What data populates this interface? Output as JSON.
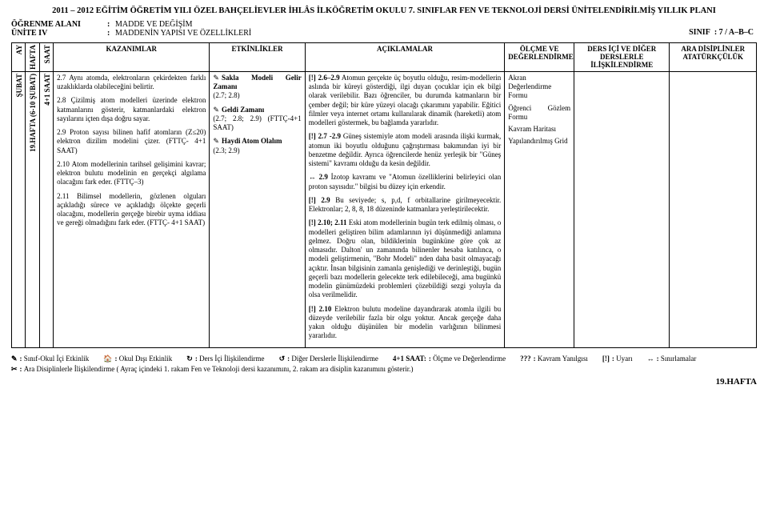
{
  "header_title": "2011 – 2012 EĞİTİM ÖĞRETİM YILI ÖZEL BAHÇELİEVLER İHLÂS İLKÖĞRETİM OKULU 7. SINIFLAR FEN VE TEKNOLOJİ DERSİ ÜNİTELENDİRİLMİŞ YILLIK PLANI",
  "ogrenme_alani_lab": "ÖĞRENME ALANI",
  "ogrenme_alani_val": "MADDE VE DEĞİŞİM",
  "unite_lab": "ÜNİTE IV",
  "unite_val": "MADDENİN YAPISI VE ÖZELLİKLERİ",
  "sinif_lab": "SINIF",
  "sinif_val": "7 / A–B–C",
  "cols": {
    "ay": "AY",
    "hafta": "HAFTA",
    "saat": "SAAT",
    "kazanimlar": "KAZANIMLAR",
    "etkinlikler": "ETKİNLİKLER",
    "aciklamalar": "AÇIKLAMALAR",
    "olcme": "ÖLÇME VE DEĞERLENDİRME",
    "ders_ici": "DERS İÇİ VE DİĞER DERSLERLE İLİŞKİLENDİRME",
    "ara": "ARA DİSİPLİNLER ATATÜRKÇÜLÜK"
  },
  "row": {
    "ay": "ŞUBAT",
    "hafta": "19.HAFTA (6-10 ŞUBAT)",
    "saat": "4+1 SAAT",
    "kazanimlar": [
      {
        "n": "2.7",
        "t": "Aynı atomda, elektronların çekirdekten farklı uzaklıklarda olabileceğini belirtir."
      },
      {
        "n": "2.8",
        "t": "Çizilmiş atom modelleri üzerinde elektron katmanlarını gösterir, katmanlardaki elektron sayılarını içten dışa doğru sayar."
      },
      {
        "n": "2.9",
        "t": "Proton sayısı bilinen hafif atomların (Z≤20) elektron dizilim modelini çizer. (FTTÇ- 4+1 SAAT)"
      },
      {
        "n": "2.10",
        "t": "Atom modellerinin tarihsel gelişimini kavrar; elektron bulutu modelinin en gerçekçi algılama olacağını fark eder. (FTTÇ–3)"
      },
      {
        "n": "2.11",
        "t": "Bilimsel modellerin, gözlenen olguları açıkladığı sürece ve açıkladığı ölçekte geçerli olacağını, modellerin gerçeğe birebir uyma iddiası ve gereği olmadığını fark eder. (FTTÇ- 4+1 SAAT)"
      }
    ],
    "etkinlikler": [
      {
        "icon": "✎",
        "title": "Sakla Modeli Gelir Zamanı",
        "sub": "(2.7; 2.8)"
      },
      {
        "icon": "✎",
        "title": "Geldi Zamanı",
        "sub": "(2.7; 2.8; 2.9) (FTTÇ-4+1 SAAT)"
      },
      {
        "icon": "✎",
        "title": "Haydi Atom Olalım",
        "sub": "(2.3; 2.9)"
      }
    ],
    "aciklamalar": [
      {
        "prefix": "[!]",
        "bold": "2.6–2.9",
        "t": "Atomun gerçekte üç boyutlu olduğu, resim-modellerin aslında bir küreyi gösterdiği, ilgi duyan çocuklar için ek bilgi olarak verilebilir. Bazı öğrenciler, bu durumda katmanların bir çember değil; bir küre yüzeyi olacağı çıkarımını yapabilir. Eğitici filmler veya internet ortamı kullanılarak dinamik (hareketli) atom modelleri göstermek, bu bağlamda yararlıdır."
      },
      {
        "prefix": "[!]",
        "bold": "2.7 -2.9",
        "t": "Güneş sistemiyle atom modeli arasında ilişki kurmak, atomun iki boyutlu olduğunu çağrıştırması bakımından iyi bir benzetme değildir. Ayrıca öğrencilerde henüz yerleşik bir \"Güneş sistemi\" kavramı olduğu da kesin değildir."
      },
      {
        "prefix": "↔",
        "bold": "2.9",
        "t": "İzotop kavramı ve \"Atomun özelliklerini belirleyici olan proton sayısıdır.\" bilgisi bu düzey için erkendir."
      },
      {
        "prefix": "[!]",
        "bold": "2.9",
        "t": "Bu seviyede; s, p,d, f orbitallarine girilmeyecektir. Elektronlar; 2, 8, 8, 18 düzeninde katmanlara yerleştirilecektir."
      },
      {
        "prefix": "[!]",
        "bold": "2.10; 2.11",
        "t": "Eski atom modellerinin bugün terk edilmiş olması, o modelleri geliştiren bilim adamlarının iyi düşünmediği anlamına gelmez. Doğru olan, bildiklerinin bugünküne göre çok az olmasıdır. Dalton' un zamanında bilinenler hesaba katılınca, o modeli geliştirmenin, \"Bohr Modeli\" nden daha basit olmayacağı açıktır. İnsan bilgisinin zamanla genişlediği ve derinleştiği, bugün geçerli bazı modellerin gelecekte terk edilebileceği, ama bugünkü modelin günümüzdeki problemleri çözebildiği sezgi yoluyla da olsa verilmelidir."
      },
      {
        "prefix": "[!]",
        "bold": "2.10",
        "t": "Elektron bulutu modeline dayandırarak atomla ilgili bu düzeyde verilebilir fazla bir olgu yoktur. Ancak gerçeğe daha yakın olduğu düşünülen bir modelin varlığının bilinmesi yararlıdır."
      }
    ],
    "olcme": [
      "Akran Değerlendirme Formu",
      "",
      "Öğrenci Gözlem Formu",
      "",
      "Kavram Haritası",
      "",
      "Yapılandırılmış Grid"
    ]
  },
  "footer": [
    {
      "sym": "✎",
      "lab": "Sınıf-Okul İçi Etkinlik"
    },
    {
      "sym": "🏠",
      "lab": "Okul Dışı Etkinlik"
    },
    {
      "sym": "↻",
      "lab": "Ders İçi İlişkilendirme"
    },
    {
      "sym": "↺",
      "lab": "Diğer Derslerle İlişkilendirme"
    },
    {
      "sym": "4+1 SAAT:",
      "lab": "Ölçme ve Değerlendirme"
    },
    {
      "sym": "???",
      "lab": "Kavram Yanılgısı"
    },
    {
      "sym": "[!]",
      "lab": "Uyarı"
    },
    {
      "sym": "↔",
      "lab": "Sınırlamalar"
    },
    {
      "sym": "✂",
      "lab": "Ara Disiplinlerle İlişkilendirme ( Ayraç içindeki 1. rakam Fen ve Teknoloji dersi kazanımını, 2. rakam ara disiplin kazanımını gösterir.)"
    }
  ],
  "hafta_corner": "19.HAFTA",
  "widths": {
    "ay": "16px",
    "hafta": "16px",
    "saat": "16px",
    "kaz": "180px",
    "etk": "110px",
    "acik": "230px",
    "olcme": "80px",
    "ders": "110px",
    "ara": "100px"
  }
}
